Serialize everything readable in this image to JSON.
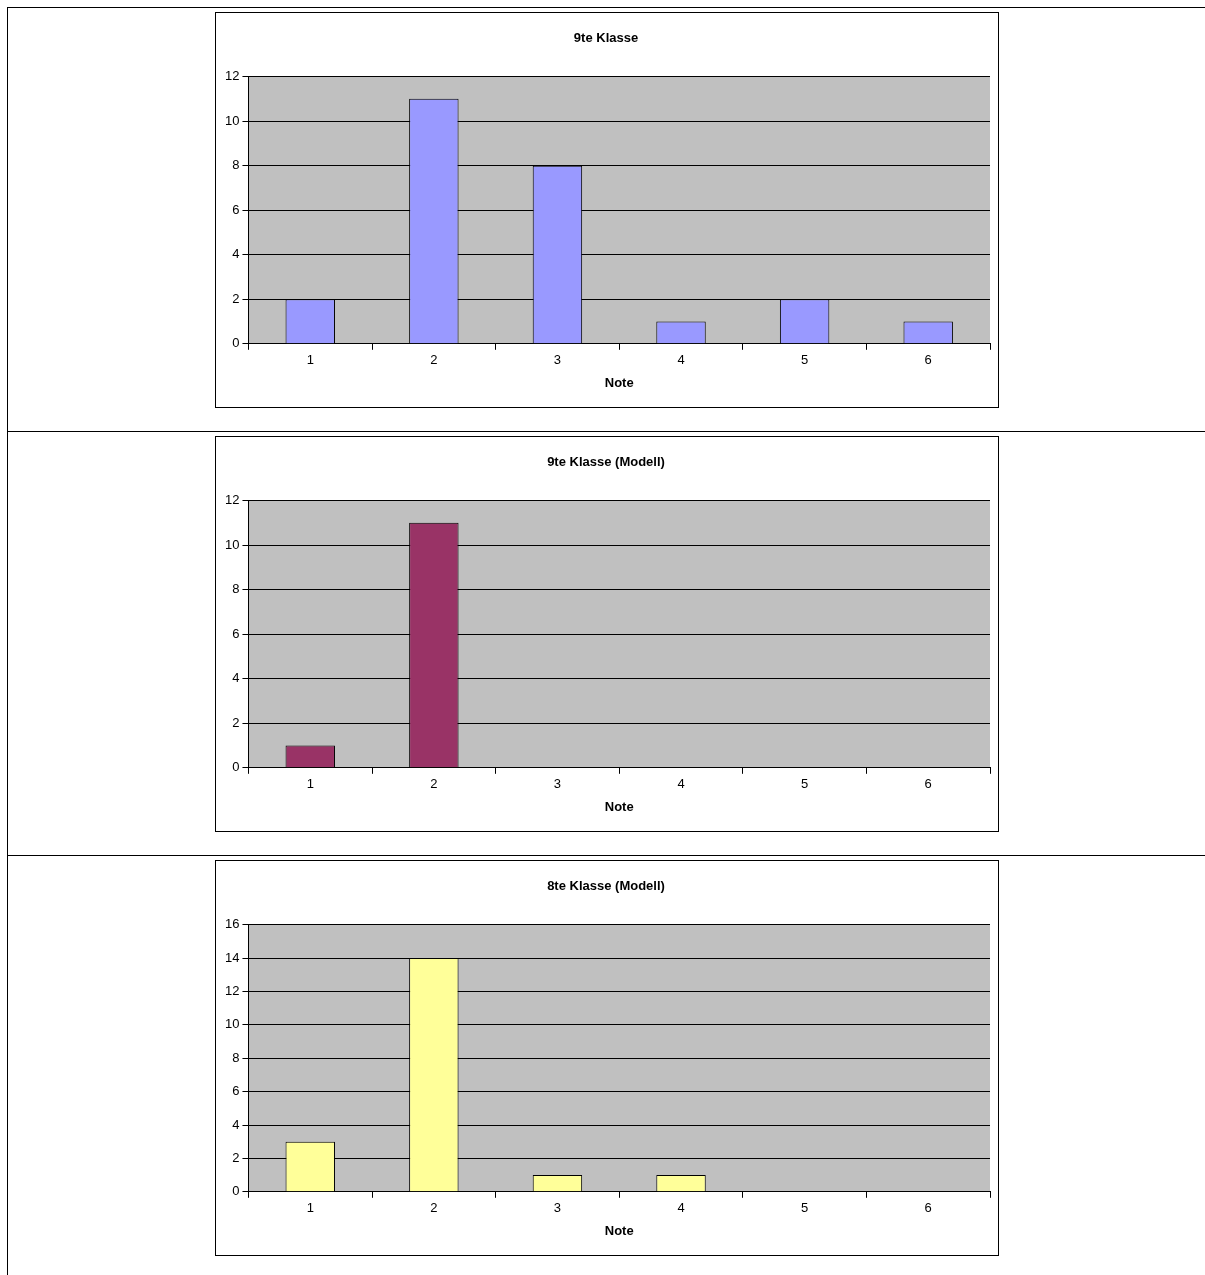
{
  "chart_data": [
    {
      "type": "bar",
      "title": "9te Klasse",
      "xlabel": "Note",
      "categories": [
        "1",
        "2",
        "3",
        "4",
        "5",
        "6"
      ],
      "values": [
        2,
        11,
        8,
        1,
        2,
        1
      ],
      "color": "#9999ff",
      "ylim": [
        0,
        12
      ],
      "yticks": [
        0,
        2,
        4,
        6,
        8,
        10,
        12
      ],
      "grid": "y"
    },
    {
      "type": "bar",
      "title": "9te Klasse (Modell)",
      "xlabel": "Note",
      "categories": [
        "1",
        "2",
        "3",
        "4",
        "5",
        "6"
      ],
      "values": [
        1,
        11,
        0,
        0,
        0,
        0
      ],
      "color": "#993366",
      "ylim": [
        0,
        12
      ],
      "yticks": [
        0,
        2,
        4,
        6,
        8,
        10,
        12
      ],
      "grid": "y"
    },
    {
      "type": "bar",
      "title": "8te Klasse (Modell)",
      "xlabel": "Note",
      "categories": [
        "1",
        "2",
        "3",
        "4",
        "5",
        "6"
      ],
      "values": [
        3,
        14,
        1,
        1,
        0,
        0
      ],
      "color": "#ffff99",
      "ylim": [
        0,
        16
      ],
      "yticks": [
        0,
        2,
        4,
        6,
        8,
        10,
        12,
        14,
        16
      ],
      "grid": "y"
    }
  ]
}
